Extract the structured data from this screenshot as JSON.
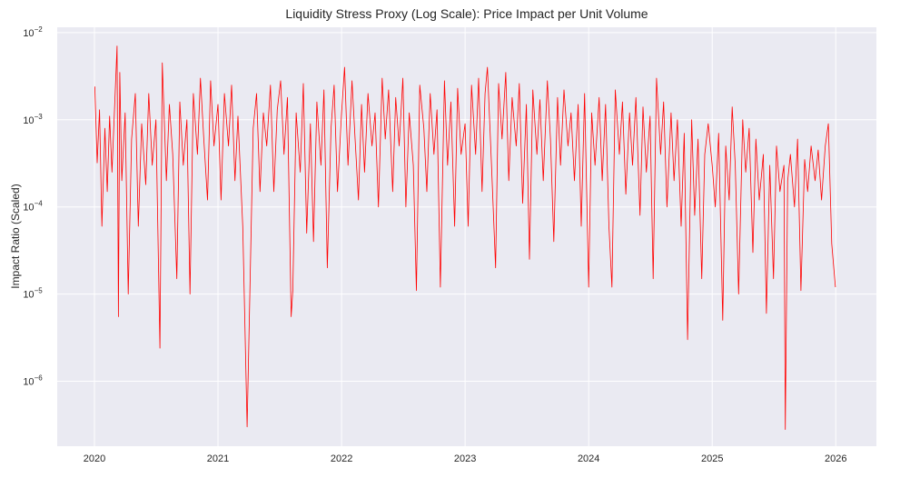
{
  "chart_data": {
    "type": "line",
    "title": "Liquidity Stress Proxy (Log Scale): Price Impact per Unit Volume",
    "xlabel": "",
    "ylabel": "Impact Ratio (Scaled)",
    "yscale": "log",
    "ylim": [
      1.8e-07,
      0.0115
    ],
    "xlim": [
      "2019-09-13",
      "2026-05-01"
    ],
    "grid": true,
    "legend": "none",
    "colors": {
      "line": "#ff0000",
      "background": "#eaeaf2",
      "grid": "#ffffff"
    },
    "x_ticks": [
      "2020",
      "2021",
      "2022",
      "2023",
      "2024",
      "2025",
      "2026"
    ],
    "y_ticks": [
      {
        "value": 0.01,
        "base": "10",
        "exp": "−2"
      },
      {
        "value": 0.001,
        "base": "10",
        "exp": "−3"
      },
      {
        "value": 0.0001,
        "base": "10",
        "exp": "−4"
      },
      {
        "value": 1e-05,
        "base": "10",
        "exp": "−5"
      },
      {
        "value": 1e-06,
        "base": "10",
        "exp": "−6"
      }
    ],
    "points": [
      [
        "2020-01-02",
        0.0024
      ],
      [
        "2020-01-09",
        0.00032
      ],
      [
        "2020-01-16",
        0.0013
      ],
      [
        "2020-01-23",
        6e-05
      ],
      [
        "2020-02-01",
        0.0008
      ],
      [
        "2020-02-08",
        0.00015
      ],
      [
        "2020-02-15",
        0.0011
      ],
      [
        "2020-02-22",
        0.00025
      ],
      [
        "2020-03-01",
        0.0015
      ],
      [
        "2020-03-08",
        0.007
      ],
      [
        "2020-03-12",
        5.5e-06
      ],
      [
        "2020-03-16",
        0.0035
      ],
      [
        "2020-03-22",
        0.0002
      ],
      [
        "2020-04-01",
        0.0012
      ],
      [
        "2020-04-10",
        1e-05
      ],
      [
        "2020-04-20",
        0.0006
      ],
      [
        "2020-05-01",
        0.002
      ],
      [
        "2020-05-10",
        6e-05
      ],
      [
        "2020-05-20",
        0.0009
      ],
      [
        "2020-06-01",
        0.00018
      ],
      [
        "2020-06-10",
        0.002
      ],
      [
        "2020-06-20",
        0.0003
      ],
      [
        "2020-07-01",
        0.001
      ],
      [
        "2020-07-13",
        2.4e-06
      ],
      [
        "2020-07-20",
        0.0045
      ],
      [
        "2020-08-01",
        0.0002
      ],
      [
        "2020-08-10",
        0.0015
      ],
      [
        "2020-08-20",
        0.0004
      ],
      [
        "2020-09-01",
        1.5e-05
      ],
      [
        "2020-09-10",
        0.0016
      ],
      [
        "2020-09-20",
        0.0003
      ],
      [
        "2020-10-01",
        0.001
      ],
      [
        "2020-10-10",
        1e-05
      ],
      [
        "2020-10-20",
        0.002
      ],
      [
        "2020-11-01",
        0.0004
      ],
      [
        "2020-11-10",
        0.003
      ],
      [
        "2020-11-20",
        0.0006
      ],
      [
        "2020-12-01",
        0.00012
      ],
      [
        "2020-12-10",
        0.0028
      ],
      [
        "2020-12-20",
        0.0005
      ],
      [
        "2021-01-01",
        0.0015
      ],
      [
        "2021-01-10",
        0.00012
      ],
      [
        "2021-01-20",
        0.002
      ],
      [
        "2021-02-01",
        0.0005
      ],
      [
        "2021-02-10",
        0.0025
      ],
      [
        "2021-02-20",
        0.0002
      ],
      [
        "2021-03-01",
        0.0011
      ],
      [
        "2021-03-15",
        6e-05
      ],
      [
        "2021-03-28",
        3e-07
      ],
      [
        "2021-04-05",
        1e-05
      ],
      [
        "2021-04-15",
        0.0008
      ],
      [
        "2021-04-25",
        0.002
      ],
      [
        "2021-05-05",
        0.00015
      ],
      [
        "2021-05-15",
        0.0012
      ],
      [
        "2021-05-25",
        0.0005
      ],
      [
        "2021-06-05",
        0.0025
      ],
      [
        "2021-06-15",
        0.00015
      ],
      [
        "2021-06-25",
        0.0013
      ],
      [
        "2021-07-05",
        0.0028
      ],
      [
        "2021-07-15",
        0.0004
      ],
      [
        "2021-07-25",
        0.0018
      ],
      [
        "2021-08-05",
        5.5e-06
      ],
      [
        "2021-08-10",
        1.1e-05
      ],
      [
        "2021-08-20",
        0.0012
      ],
      [
        "2021-09-01",
        0.00025
      ],
      [
        "2021-09-10",
        0.0026
      ],
      [
        "2021-09-20",
        5e-05
      ],
      [
        "2021-10-01",
        0.0009
      ],
      [
        "2021-10-10",
        4e-05
      ],
      [
        "2021-10-20",
        0.0016
      ],
      [
        "2021-11-01",
        0.0003
      ],
      [
        "2021-11-10",
        0.0022
      ],
      [
        "2021-11-20",
        2e-05
      ],
      [
        "2021-12-01",
        0.0008
      ],
      [
        "2021-12-10",
        0.0025
      ],
      [
        "2021-12-20",
        0.00015
      ],
      [
        "2022-01-01",
        0.0012
      ],
      [
        "2022-01-10",
        0.004
      ],
      [
        "2022-01-20",
        0.0003
      ],
      [
        "2022-02-01",
        0.0028
      ],
      [
        "2022-02-10",
        0.0006
      ],
      [
        "2022-02-20",
        0.00012
      ],
      [
        "2022-03-01",
        0.0015
      ],
      [
        "2022-03-10",
        0.00025
      ],
      [
        "2022-03-20",
        0.002
      ],
      [
        "2022-04-01",
        0.0005
      ],
      [
        "2022-04-10",
        0.0012
      ],
      [
        "2022-04-20",
        0.0001
      ],
      [
        "2022-05-01",
        0.003
      ],
      [
        "2022-05-10",
        0.0006
      ],
      [
        "2022-05-20",
        0.0022
      ],
      [
        "2022-06-01",
        0.00015
      ],
      [
        "2022-06-10",
        0.0018
      ],
      [
        "2022-06-20",
        0.0005
      ],
      [
        "2022-07-01",
        0.003
      ],
      [
        "2022-07-10",
        0.0001
      ],
      [
        "2022-07-20",
        0.0012
      ],
      [
        "2022-08-01",
        0.0003
      ],
      [
        "2022-08-10",
        1.1e-05
      ],
      [
        "2022-08-20",
        0.0025
      ],
      [
        "2022-09-01",
        0.0008
      ],
      [
        "2022-09-10",
        0.00015
      ],
      [
        "2022-09-20",
        0.002
      ],
      [
        "2022-10-01",
        0.0004
      ],
      [
        "2022-10-10",
        0.0013
      ],
      [
        "2022-10-20",
        1.2e-05
      ],
      [
        "2022-11-01",
        0.0028
      ],
      [
        "2022-11-10",
        0.0003
      ],
      [
        "2022-11-20",
        0.0016
      ],
      [
        "2022-12-01",
        6e-05
      ],
      [
        "2022-12-10",
        0.0023
      ],
      [
        "2022-12-20",
        0.0004
      ],
      [
        "2023-01-01",
        0.0009
      ],
      [
        "2023-01-10",
        6e-05
      ],
      [
        "2023-01-20",
        0.0025
      ],
      [
        "2023-02-01",
        0.0004
      ],
      [
        "2023-02-10",
        0.003
      ],
      [
        "2023-02-20",
        0.00015
      ],
      [
        "2023-03-01",
        0.002
      ],
      [
        "2023-03-08",
        0.004
      ],
      [
        "2023-03-20",
        0.0003
      ],
      [
        "2023-04-01",
        2e-05
      ],
      [
        "2023-04-10",
        0.0026
      ],
      [
        "2023-04-20",
        0.0006
      ],
      [
        "2023-05-01",
        0.0035
      ],
      [
        "2023-05-10",
        0.0002
      ],
      [
        "2023-05-20",
        0.0018
      ],
      [
        "2023-06-01",
        0.0005
      ],
      [
        "2023-06-10",
        0.0026
      ],
      [
        "2023-06-20",
        0.00011
      ],
      [
        "2023-07-01",
        0.0015
      ],
      [
        "2023-07-10",
        2.5e-05
      ],
      [
        "2023-07-20",
        0.0022
      ],
      [
        "2023-08-01",
        0.0004
      ],
      [
        "2023-08-10",
        0.0017
      ],
      [
        "2023-08-20",
        0.0002
      ],
      [
        "2023-09-01",
        0.0028
      ],
      [
        "2023-09-10",
        0.0006
      ],
      [
        "2023-09-20",
        4e-05
      ],
      [
        "2023-10-01",
        0.0018
      ],
      [
        "2023-10-10",
        0.0003
      ],
      [
        "2023-10-20",
        0.0022
      ],
      [
        "2023-11-01",
        0.0005
      ],
      [
        "2023-11-10",
        0.0012
      ],
      [
        "2023-11-20",
        0.0002
      ],
      [
        "2023-12-01",
        0.0015
      ],
      [
        "2023-12-10",
        6e-05
      ],
      [
        "2023-12-20",
        0.002
      ],
      [
        "2024-01-01",
        1.2e-05
      ],
      [
        "2024-01-10",
        0.0012
      ],
      [
        "2024-01-20",
        0.0003
      ],
      [
        "2024-02-01",
        0.0018
      ],
      [
        "2024-02-10",
        0.0002
      ],
      [
        "2024-02-20",
        0.0015
      ],
      [
        "2024-03-01",
        6e-05
      ],
      [
        "2024-03-10",
        1.2e-05
      ],
      [
        "2024-03-20",
        0.0022
      ],
      [
        "2024-04-01",
        0.0004
      ],
      [
        "2024-04-10",
        0.0016
      ],
      [
        "2024-04-20",
        0.00014
      ],
      [
        "2024-05-01",
        0.0012
      ],
      [
        "2024-05-10",
        0.0003
      ],
      [
        "2024-05-20",
        0.0018
      ],
      [
        "2024-06-01",
        8e-05
      ],
      [
        "2024-06-10",
        0.0014
      ],
      [
        "2024-06-20",
        0.00025
      ],
      [
        "2024-07-01",
        0.0011
      ],
      [
        "2024-07-10",
        1.5e-05
      ],
      [
        "2024-07-20",
        0.003
      ],
      [
        "2024-08-01",
        0.0004
      ],
      [
        "2024-08-10",
        0.0016
      ],
      [
        "2024-08-20",
        0.0001
      ],
      [
        "2024-09-01",
        0.0012
      ],
      [
        "2024-09-10",
        0.0002
      ],
      [
        "2024-09-20",
        0.001
      ],
      [
        "2024-10-01",
        6e-05
      ],
      [
        "2024-10-10",
        0.0007
      ],
      [
        "2024-10-20",
        3e-06
      ],
      [
        "2024-11-01",
        0.001
      ],
      [
        "2024-11-10",
        8e-05
      ],
      [
        "2024-11-20",
        0.0006
      ],
      [
        "2024-12-01",
        1.5e-05
      ],
      [
        "2024-12-10",
        0.0004
      ],
      [
        "2024-12-20",
        0.0009
      ],
      [
        "2025-01-01",
        0.0003
      ],
      [
        "2025-01-10",
        0.0001
      ],
      [
        "2025-01-20",
        0.0007
      ],
      [
        "2025-02-01",
        5e-06
      ],
      [
        "2025-02-10",
        0.0005
      ],
      [
        "2025-02-20",
        0.00012
      ],
      [
        "2025-03-01",
        0.0014
      ],
      [
        "2025-03-10",
        0.0003
      ],
      [
        "2025-03-20",
        1e-05
      ],
      [
        "2025-04-01",
        0.001
      ],
      [
        "2025-04-10",
        0.00025
      ],
      [
        "2025-04-20",
        0.0008
      ],
      [
        "2025-05-01",
        3e-05
      ],
      [
        "2025-05-10",
        0.0006
      ],
      [
        "2025-05-20",
        0.00012
      ],
      [
        "2025-06-01",
        0.0004
      ],
      [
        "2025-06-10",
        6e-06
      ],
      [
        "2025-06-20",
        0.0003
      ],
      [
        "2025-07-01",
        1.5e-05
      ],
      [
        "2025-07-10",
        0.0005
      ],
      [
        "2025-07-20",
        0.00015
      ],
      [
        "2025-08-01",
        0.0003
      ],
      [
        "2025-08-05",
        2.8e-07
      ],
      [
        "2025-08-12",
        0.0002
      ],
      [
        "2025-08-20",
        0.0004
      ],
      [
        "2025-09-01",
        0.0001
      ],
      [
        "2025-09-10",
        0.0006
      ],
      [
        "2025-09-20",
        1.1e-05
      ],
      [
        "2025-10-01",
        0.00035
      ],
      [
        "2025-10-10",
        0.00015
      ],
      [
        "2025-10-20",
        0.0005
      ],
      [
        "2025-11-01",
        0.0002
      ],
      [
        "2025-11-10",
        0.00045
      ],
      [
        "2025-11-20",
        0.00012
      ],
      [
        "2025-12-01",
        0.0005
      ],
      [
        "2025-12-10",
        0.0009
      ],
      [
        "2025-12-20",
        3.8e-05
      ],
      [
        "2025-12-31",
        1.2e-05
      ]
    ]
  }
}
